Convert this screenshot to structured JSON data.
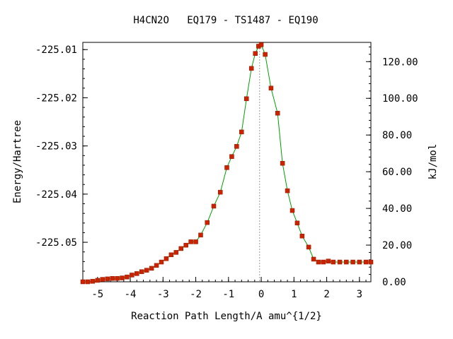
{
  "chart_data": {
    "type": "line",
    "title": "H4CN2O   EQ179 - TS1487 - EQ190",
    "xlabel": "Reaction Path Length/A amu^{1/2}",
    "ylabel": "Energy/Hartree",
    "y2label": "kJ/mol",
    "xlim": [
      -5.45,
      3.35
    ],
    "ylim": [
      -225.0582,
      -225.0085
    ],
    "y2lim": [
      0.0,
      130.5
    ],
    "x_ticks": [
      -5,
      -4,
      -3,
      -2,
      -1,
      0,
      1,
      2,
      3
    ],
    "x_tick_labels": [
      "-5",
      "-4",
      "-3",
      "-2",
      "-1",
      "0",
      "1",
      "2",
      "3"
    ],
    "y_ticks": [
      -225.01,
      -225.02,
      -225.03,
      -225.04,
      -225.05
    ],
    "y_tick_labels": [
      "-225.01",
      "-225.02",
      "-225.03",
      "-225.04",
      "-225.05"
    ],
    "y2_ticks": [
      0,
      20,
      40,
      60,
      80,
      100,
      120
    ],
    "y2_tick_labels": [
      "0.00",
      "20.00",
      "40.00",
      "60.00",
      "80.00",
      "100.00",
      "120.00"
    ],
    "ts_marker_x": -0.05,
    "line_color": "#00a000",
    "marker_color": "#cc2200",
    "series": [
      {
        "x": [
          -5.45,
          -5.3,
          -5.15,
          -5.0,
          -4.85,
          -4.7,
          -4.55,
          -4.4,
          -4.25,
          -4.1,
          -3.95,
          -3.8,
          -3.65,
          -3.5,
          -3.35,
          -3.2,
          -3.05,
          -2.9,
          -2.75,
          -2.6,
          -2.45,
          -2.3,
          -2.15,
          -2.0,
          -1.85,
          -1.65,
          -1.45,
          -1.25,
          -1.05,
          -0.9,
          -0.75,
          -0.6,
          -0.45,
          -0.3,
          -0.18,
          -0.08,
          0.0,
          0.12,
          0.3,
          0.5,
          0.65,
          0.8,
          0.95,
          1.1,
          1.25,
          1.45,
          1.6,
          1.75,
          1.9,
          2.05,
          2.2,
          2.4,
          2.6,
          2.8,
          3.0,
          3.2,
          3.35
        ],
        "y": [
          -225.0582,
          -225.0582,
          -225.0581,
          -225.0579,
          -225.0577,
          -225.0576,
          -225.0575,
          -225.0575,
          -225.0574,
          -225.0572,
          -225.0568,
          -225.0565,
          -225.0561,
          -225.0558,
          -225.0554,
          -225.0548,
          -225.0541,
          -225.0534,
          -225.0526,
          -225.0521,
          -225.0513,
          -225.0506,
          -225.0499,
          -225.0499,
          -225.0485,
          -225.0459,
          -225.0425,
          -225.0396,
          -225.0345,
          -225.0322,
          -225.0301,
          -225.0271,
          -225.0202,
          -225.0139,
          -225.0108,
          -225.0093,
          -225.009,
          -225.011,
          -225.018,
          -225.0232,
          -225.0336,
          -225.0393,
          -225.0434,
          -225.046,
          -225.0487,
          -225.051,
          -225.0535,
          -225.0541,
          -225.0541,
          -225.0539,
          -225.0541,
          -225.0541,
          -225.0541,
          -225.0541,
          -225.0541,
          -225.0541,
          -225.0541
        ]
      }
    ]
  }
}
